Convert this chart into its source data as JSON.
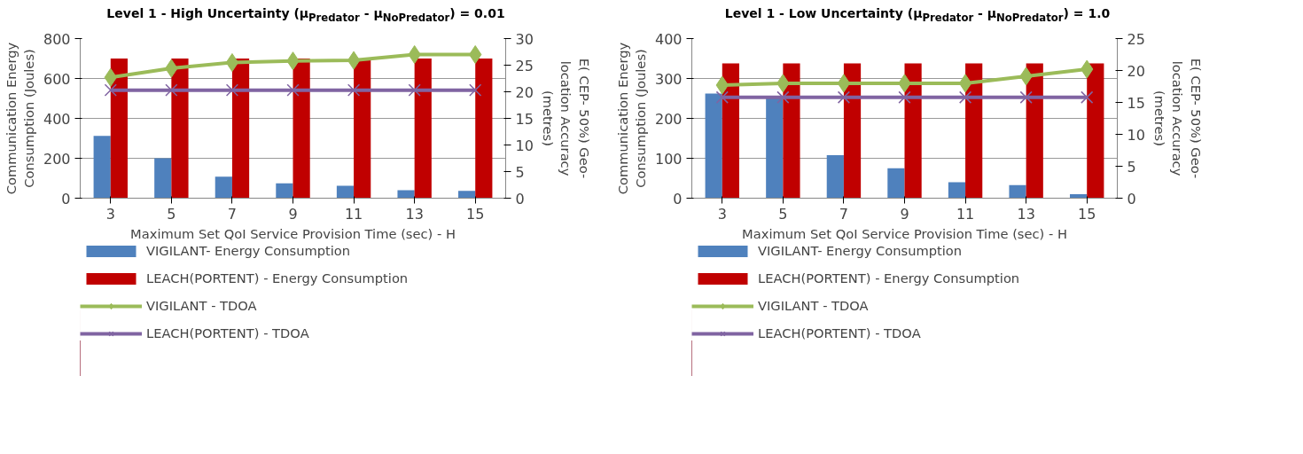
{
  "chart_data": [
    {
      "type": "bar",
      "title": "Level 1 - High Uncertainty (μ$_{Predator}$ - μ$_{NoPredator}$) = 0.01",
      "xlabel": "Maximum Set QoI Service Provision Time (sec) - H",
      "ylabel": "Communication Energy Consumption (Joules)",
      "y2label": "E( CEP- 50%) Geo-location Accuracy (metres)",
      "categories": [
        "3",
        "5",
        "7",
        "9",
        "11",
        "13",
        "15"
      ],
      "ylim": [
        0,
        800
      ],
      "yticks": [
        0,
        200,
        400,
        600,
        800
      ],
      "y2lim": [
        0,
        30
      ],
      "y2ticks": [
        0,
        5,
        10,
        15,
        20,
        25,
        30
      ],
      "grid": "y",
      "legend": "bottom",
      "series": [
        {
          "name": "VIGILANT- Energy Consumption",
          "color": "#4f81bd",
          "values": [
            312,
            200,
            108,
            75,
            62,
            40,
            37
          ]
        },
        {
          "name": "LEACH(PORTENT) - Energy Consumption",
          "color": "#c00000",
          "values": [
            700,
            700,
            700,
            700,
            700,
            700,
            700
          ]
        },
        {
          "name": "VIGILANT - TDOA",
          "type": "line",
          "axis": "y2",
          "marker": "diamond",
          "color": "#9bbb59",
          "values": [
            22.7,
            24.4,
            25.5,
            25.8,
            25.9,
            27,
            27
          ]
        },
        {
          "name": "LEACH(PORTENT) - TDOA",
          "type": "line",
          "axis": "y2",
          "marker": "cross",
          "color": "#8064a2",
          "values": [
            20.3,
            20.3,
            20.3,
            20.3,
            20.3,
            20.3,
            20.3
          ]
        }
      ]
    },
    {
      "type": "bar",
      "title": "Level 1 - Low Uncertainty (μ$_{Predator}$ - μ$_{NoPredator}$) = 1.0",
      "xlabel": "Maximum Set QoI Service Provision Time (sec) - H",
      "ylabel": "Communication Energy Consumption (Joules)",
      "y2label": "E( CEP- 50%) Geo-location Accuracy (metres)",
      "categories": [
        "3",
        "5",
        "7",
        "9",
        "11",
        "13",
        "15"
      ],
      "ylim": [
        0,
        400
      ],
      "yticks": [
        0,
        100,
        200,
        300,
        400
      ],
      "y2lim": [
        0,
        25
      ],
      "y2ticks": [
        0,
        5,
        10,
        15,
        20,
        25
      ],
      "grid": "y",
      "legend": "bottom",
      "series": [
        {
          "name": "VIGILANT- Energy Consumption",
          "color": "#4f81bd",
          "values": [
            262,
            255,
            108,
            75,
            40,
            33,
            10
          ]
        },
        {
          "name": "LEACH(PORTENT) - Energy Consumption",
          "color": "#c00000",
          "values": [
            338,
            338,
            338,
            338,
            338,
            338,
            338
          ]
        },
        {
          "name": "VIGILANT - TDOA",
          "type": "line",
          "axis": "y2",
          "marker": "diamond",
          "color": "#9bbb59",
          "values": [
            17.7,
            18,
            18,
            18,
            18,
            19.1,
            20.2
          ]
        },
        {
          "name": "LEACH(PORTENT) - TDOA",
          "type": "line",
          "axis": "y2",
          "marker": "cross",
          "color": "#8064a2",
          "values": [
            15.8,
            15.8,
            15.8,
            15.8,
            15.8,
            15.8,
            15.8
          ]
        }
      ]
    }
  ]
}
